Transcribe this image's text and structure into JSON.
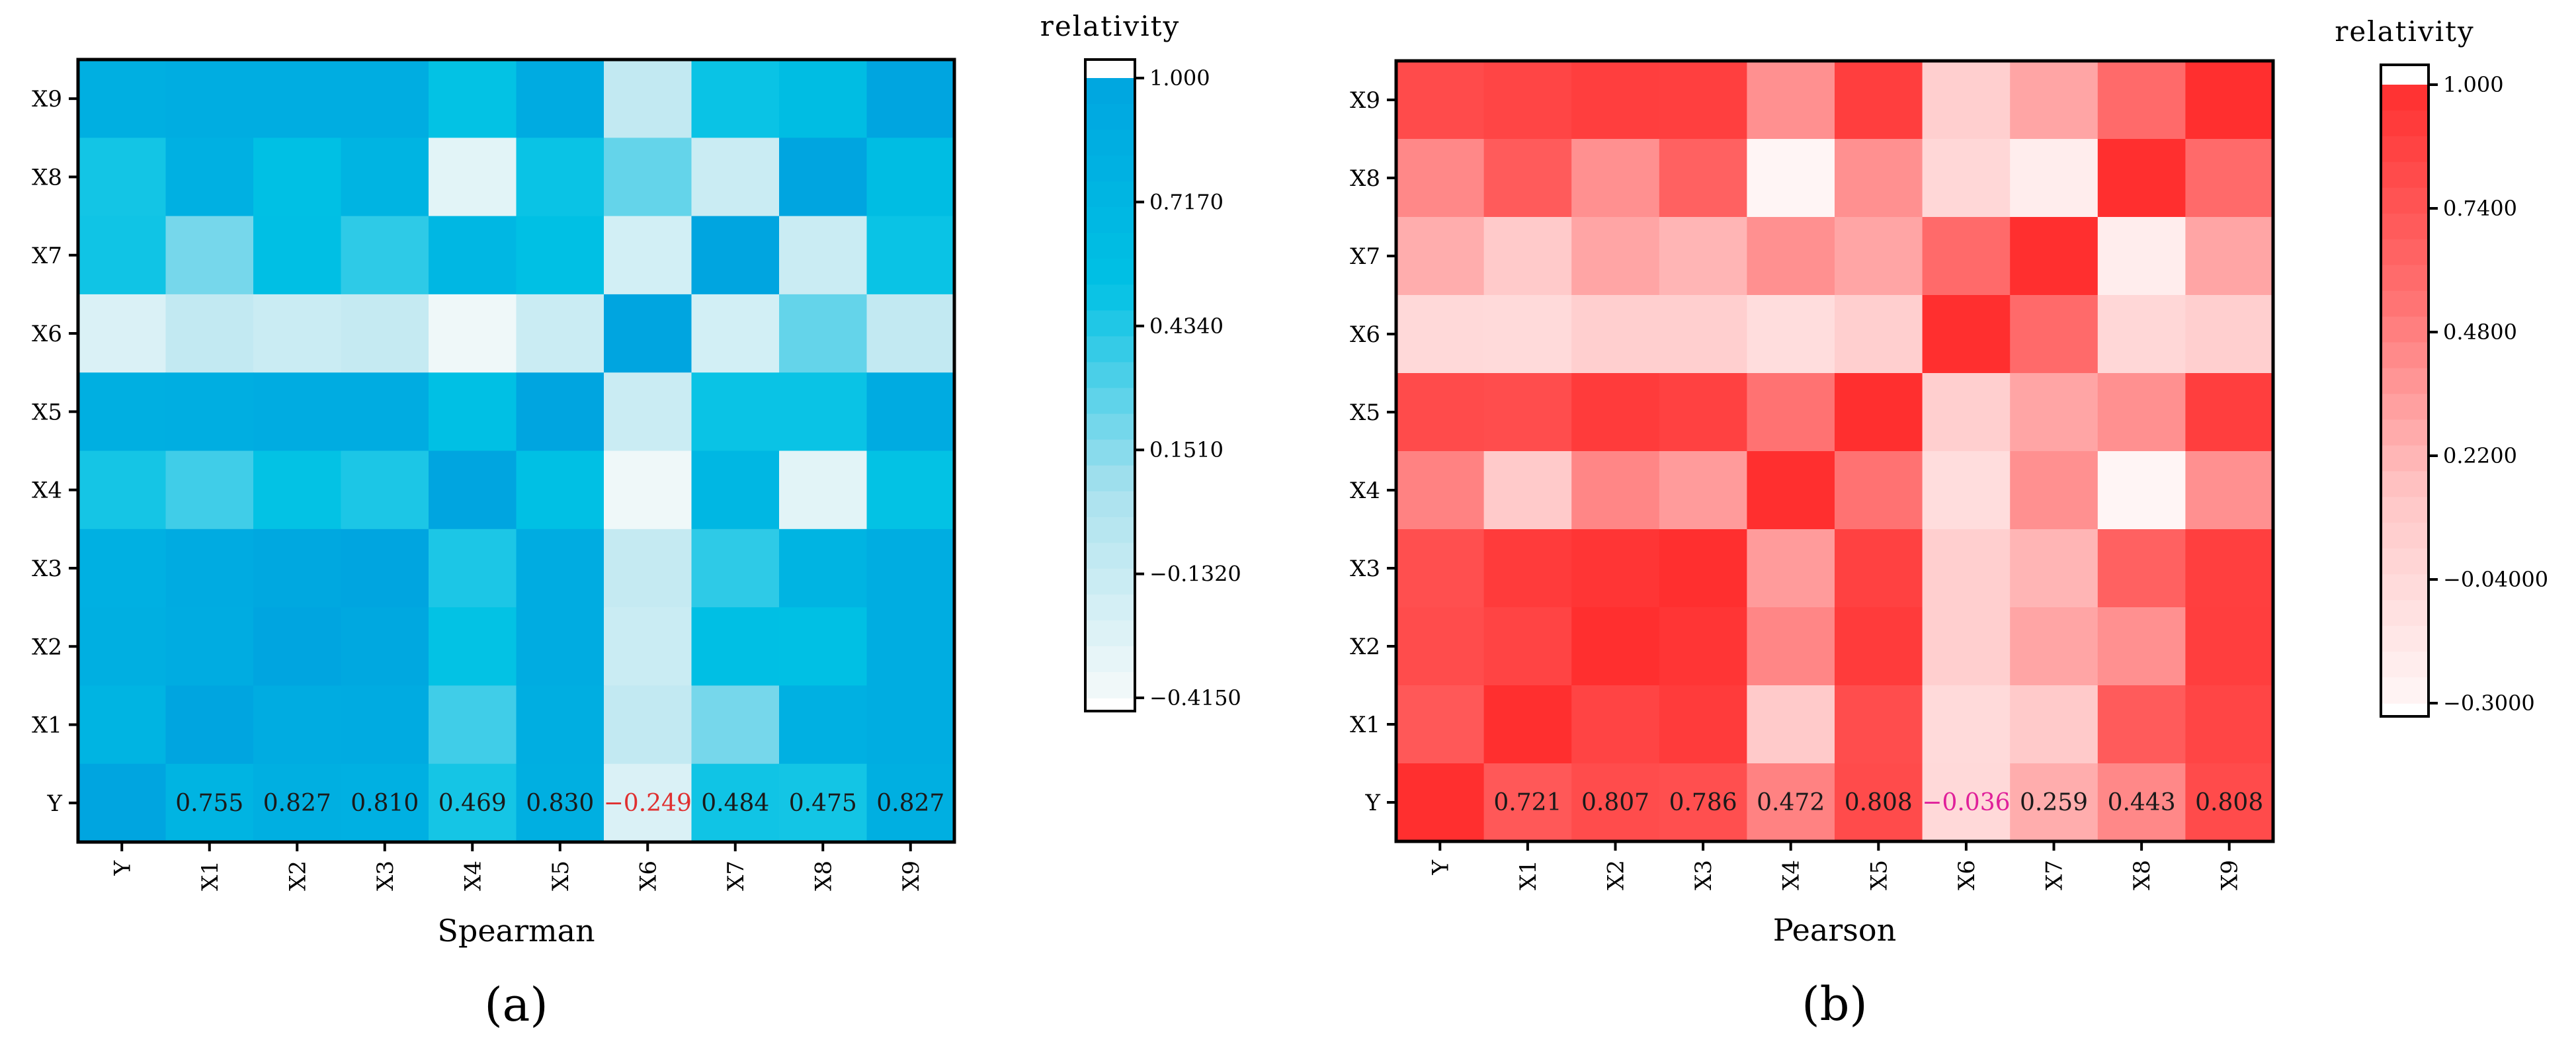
{
  "chart_data": [
    {
      "type": "heatmap",
      "title": "",
      "xlabel": "Spearman",
      "ylabel": "",
      "panel_label": "(a)",
      "x_labels": [
        "Y",
        "X1",
        "X2",
        "X3",
        "X4",
        "X5",
        "X6",
        "X7",
        "X8",
        "X9"
      ],
      "y_labels": [
        "Y",
        "X1",
        "X2",
        "X3",
        "X4",
        "X5",
        "X6",
        "X7",
        "X8",
        "X9"
      ],
      "row_values": [
        [
          "Y",
          [
            1.0,
            0.755,
            0.827,
            0.81,
            0.469,
            0.83,
            -0.249,
            0.484,
            0.475,
            0.827
          ]
        ],
        [
          "X1",
          [
            0.755,
            1.0,
            0.88,
            0.9,
            0.35,
            0.85,
            -0.1,
            0.2,
            0.82,
            0.86
          ]
        ],
        [
          "X2",
          [
            0.827,
            0.88,
            1.0,
            0.95,
            0.52,
            0.88,
            -0.15,
            0.56,
            0.55,
            0.87
          ]
        ],
        [
          "X3",
          [
            0.81,
            0.9,
            0.95,
            1.0,
            0.45,
            0.88,
            -0.12,
            0.4,
            0.75,
            0.86
          ]
        ],
        [
          "X4",
          [
            0.469,
            0.35,
            0.52,
            0.45,
            1.0,
            0.55,
            -0.38,
            0.7,
            -0.3,
            0.52
          ]
        ],
        [
          "X5",
          [
            0.83,
            0.85,
            0.88,
            0.88,
            0.55,
            1.0,
            -0.15,
            0.5,
            0.5,
            0.9
          ]
        ],
        [
          "X6",
          [
            -0.249,
            -0.1,
            -0.15,
            -0.12,
            -0.38,
            -0.15,
            1.0,
            -0.2,
            0.25,
            -0.1
          ]
        ],
        [
          "X7",
          [
            0.484,
            0.2,
            0.56,
            0.4,
            0.7,
            0.55,
            -0.2,
            1.0,
            -0.15,
            0.5
          ]
        ],
        [
          "X8",
          [
            0.475,
            0.82,
            0.55,
            0.75,
            -0.3,
            0.5,
            0.25,
            -0.15,
            1.0,
            0.6
          ]
        ],
        [
          "X9",
          [
            0.827,
            0.86,
            0.87,
            0.86,
            0.52,
            0.9,
            -0.1,
            0.5,
            0.6,
            1.0
          ]
        ]
      ],
      "row_labels_shown": [
        "Y"
      ],
      "value_range": [
        -0.415,
        1.0
      ],
      "colorbar": {
        "title": "relativity",
        "ticks": [
          "1.000",
          "0.7170",
          "0.4340",
          "0.1510",
          "−0.1320",
          "−0.4150"
        ],
        "tick_values": [
          1.0,
          0.717,
          0.434,
          0.151,
          -0.132,
          -0.415
        ],
        "color_stops": [
          "#f5fafa",
          "#a9e1ee",
          "#00c1e4",
          "#00a5e0"
        ]
      },
      "annotation_color": "#1a1a1a",
      "negative_annotation_color": "#e03030"
    },
    {
      "type": "heatmap",
      "title": "",
      "xlabel": "Pearson",
      "ylabel": "",
      "panel_label": "(b)",
      "x_labels": [
        "Y",
        "X1",
        "X2",
        "X3",
        "X4",
        "X5",
        "X6",
        "X7",
        "X8",
        "X9"
      ],
      "y_labels": [
        "Y",
        "X1",
        "X2",
        "X3",
        "X4",
        "X5",
        "X6",
        "X7",
        "X8",
        "X9"
      ],
      "row_values": [
        [
          "Y",
          [
            1.0,
            0.721,
            0.807,
            0.786,
            0.472,
            0.808,
            -0.036,
            0.259,
            0.443,
            0.808
          ]
        ],
        [
          "X1",
          [
            0.721,
            1.0,
            0.86,
            0.92,
            0.1,
            0.8,
            -0.05,
            0.1,
            0.7,
            0.85
          ]
        ],
        [
          "X2",
          [
            0.807,
            0.86,
            1.0,
            0.96,
            0.45,
            0.92,
            0.05,
            0.3,
            0.4,
            0.9
          ]
        ],
        [
          "X3",
          [
            0.786,
            0.92,
            0.96,
            1.0,
            0.35,
            0.88,
            0.05,
            0.22,
            0.66,
            0.89
          ]
        ],
        [
          "X4",
          [
            0.472,
            0.1,
            0.45,
            0.35,
            1.0,
            0.55,
            -0.07,
            0.4,
            -0.29,
            0.4
          ]
        ],
        [
          "X5",
          [
            0.808,
            0.8,
            0.92,
            0.88,
            0.55,
            1.0,
            0.05,
            0.3,
            0.4,
            0.9
          ]
        ],
        [
          "X6",
          [
            -0.036,
            -0.05,
            0.05,
            0.05,
            -0.07,
            0.05,
            1.0,
            0.6,
            -0.02,
            0.05
          ]
        ],
        [
          "X7",
          [
            0.259,
            0.1,
            0.3,
            0.22,
            0.4,
            0.3,
            0.6,
            1.0,
            -0.22,
            0.3
          ]
        ],
        [
          "X8",
          [
            0.443,
            0.7,
            0.4,
            0.66,
            -0.29,
            0.4,
            -0.02,
            -0.22,
            1.0,
            0.6
          ]
        ],
        [
          "X9",
          [
            0.808,
            0.85,
            0.9,
            0.89,
            0.4,
            0.9,
            0.05,
            0.3,
            0.6,
            1.0
          ]
        ]
      ],
      "row_labels_shown": [
        "Y"
      ],
      "value_range": [
        -0.3,
        1.0
      ],
      "colorbar": {
        "title": "relativity",
        "ticks": [
          "1.000",
          "0.7400",
          "0.4800",
          "0.2200",
          "−0.04000",
          "−0.3000"
        ],
        "tick_values": [
          1.0,
          0.74,
          0.48,
          0.22,
          -0.04,
          -0.3
        ],
        "color_stops": [
          "#fff6f6",
          "#ffc6c6",
          "#ff6f6f",
          "#ff2f2f"
        ]
      },
      "annotation_color": "#1a1a1a",
      "negative_annotation_color": "#e0209a"
    }
  ]
}
